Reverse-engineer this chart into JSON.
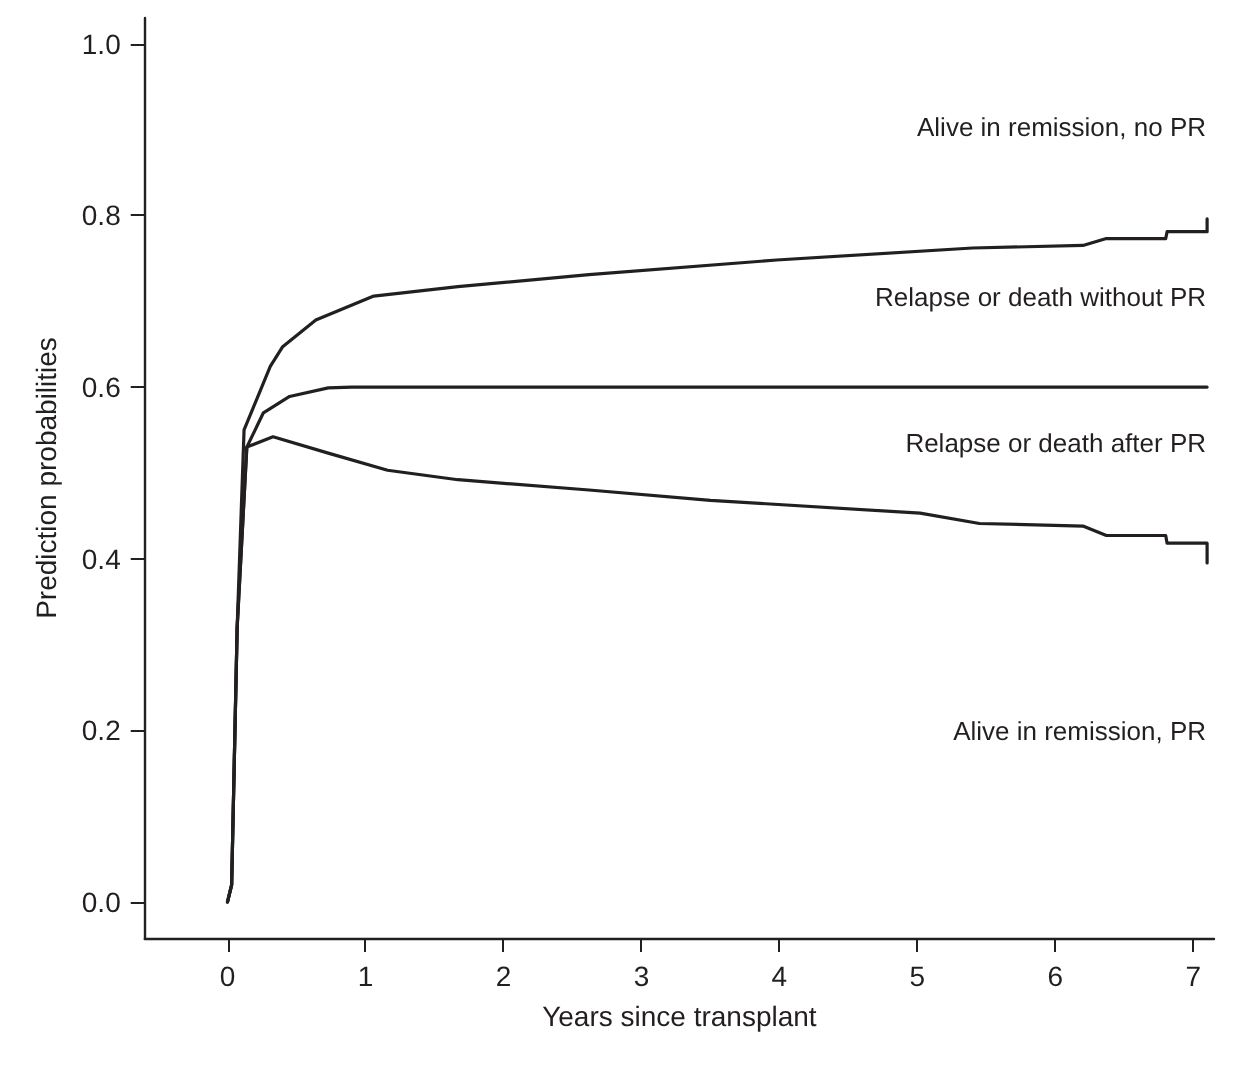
{
  "chart_data": {
    "type": "line",
    "xlabel": "Years since transplant",
    "ylabel": "Prediction probabilities",
    "xlim": [
      -0.6,
      7.15
    ],
    "ylim": [
      -0.042,
      1.03
    ],
    "xticks": [
      0,
      1,
      2,
      3,
      4,
      5,
      6,
      7
    ],
    "yticks": [
      {
        "value": 0,
        "label": "0.0"
      },
      {
        "value": 0.2,
        "label": "0.2"
      },
      {
        "value": 0.4,
        "label": "0.4"
      },
      {
        "value": 0.6,
        "label": "0.6"
      },
      {
        "value": 0.8,
        "label": "0.8"
      },
      {
        "value": 1,
        "label": "1.0"
      }
    ],
    "line_style": "solid",
    "series": [
      {
        "color": "#231f20",
        "x": [
          0,
          0.03,
          0.07,
          0.14,
          0.33,
          0.73,
          1.16,
          1.67,
          2.62,
          3.5,
          5.02,
          5.45,
          6.2,
          6.37,
          6.8,
          6.81,
          7.1,
          7.1
        ],
        "values": [
          0,
          0.02,
          0.32,
          0.53,
          0.542,
          0.523,
          0.503,
          0.492,
          0.48,
          0.468,
          0.453,
          0.441,
          0.438,
          0.427,
          0.427,
          0.418,
          0.418,
          0.395
        ]
      },
      {
        "color": "#231f20",
        "x": [
          0,
          0.03,
          0.07,
          0.14,
          0.26,
          0.45,
          0.73,
          0.9,
          7.1
        ],
        "values": [
          0,
          0.02,
          0.32,
          0.53,
          0.57,
          0.589,
          0.599,
          0.6,
          0.6
        ]
      },
      {
        "color": "#231f20",
        "x": [
          0,
          0.03,
          0.07,
          0.12,
          0.21,
          0.31,
          0.4,
          0.64,
          1.06,
          1.67,
          2.62,
          3.98,
          5.4,
          6.2,
          6.37,
          6.8,
          6.81,
          7.1,
          7.1
        ],
        "values": [
          0,
          0.02,
          0.32,
          0.55,
          0.585,
          0.624,
          0.647,
          0.678,
          0.706,
          0.717,
          0.731,
          0.748,
          0.762,
          0.765,
          0.773,
          0.773,
          0.781,
          0.781,
          0.796
        ]
      }
    ],
    "annotations": [
      "Alive in remission, no PR",
      "Relapse or death without PR",
      "Relapse or death after PR",
      "Alive in remission, PR"
    ]
  }
}
